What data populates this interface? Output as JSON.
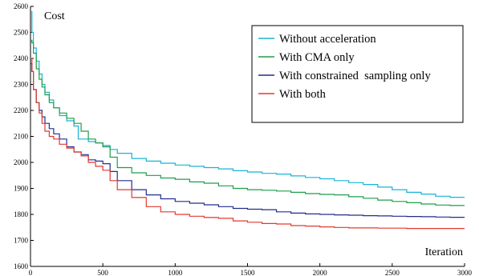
{
  "chart_data": {
    "type": "line",
    "xlabel": "Iteration",
    "ylabel": "Cost",
    "xlim": [
      0,
      3000
    ],
    "ylim": [
      1600,
      2600
    ],
    "xticks": [
      0,
      500,
      1000,
      1500,
      2000,
      2500,
      3000
    ],
    "yticks": [
      1600,
      1700,
      1800,
      1900,
      2000,
      2100,
      2200,
      2300,
      2400,
      2500,
      2600
    ],
    "grid": false,
    "legend": "top-right",
    "series": [
      {
        "name": "Without acceleration",
        "color": "#18b4d6",
        "x": [
          0,
          10,
          20,
          40,
          60,
          80,
          100,
          130,
          160,
          200,
          250,
          300,
          330,
          350,
          400,
          450,
          500,
          550,
          600,
          700,
          800,
          900,
          1000,
          1100,
          1200,
          1300,
          1400,
          1500,
          1600,
          1700,
          1800,
          1900,
          2000,
          2100,
          2200,
          2300,
          2400,
          2500,
          2600,
          2700,
          2800,
          2900,
          3000
        ],
        "y": [
          2580,
          2500,
          2440,
          2390,
          2340,
          2300,
          2270,
          2240,
          2210,
          2180,
          2160,
          2140,
          2090,
          2090,
          2080,
          2075,
          2065,
          2050,
          2035,
          2015,
          2005,
          1997,
          1990,
          1985,
          1980,
          1975,
          1968,
          1963,
          1958,
          1955,
          1948,
          1942,
          1937,
          1930,
          1922,
          1915,
          1905,
          1895,
          1885,
          1878,
          1870,
          1866,
          1866
        ]
      },
      {
        "name": "With CMA only",
        "color": "#1f9e4a",
        "x": [
          0,
          10,
          20,
          40,
          60,
          80,
          100,
          130,
          160,
          200,
          250,
          300,
          350,
          400,
          450,
          500,
          550,
          600,
          700,
          800,
          900,
          1000,
          1100,
          1200,
          1300,
          1400,
          1500,
          1600,
          1700,
          1800,
          1900,
          2000,
          2100,
          2200,
          2300,
          2400,
          2500,
          2600,
          2700,
          2800,
          2900,
          3000
        ],
        "y": [
          2470,
          2460,
          2420,
          2360,
          2320,
          2290,
          2260,
          2230,
          2210,
          2190,
          2170,
          2150,
          2120,
          2090,
          2075,
          2060,
          2020,
          1980,
          1960,
          1950,
          1940,
          1935,
          1925,
          1920,
          1910,
          1900,
          1895,
          1893,
          1890,
          1885,
          1880,
          1877,
          1875,
          1868,
          1862,
          1855,
          1850,
          1845,
          1840,
          1836,
          1834,
          1834
        ]
      },
      {
        "name": "With constrained  sampling only",
        "color": "#232d8c",
        "x": [
          0,
          10,
          20,
          40,
          60,
          80,
          100,
          130,
          160,
          200,
          250,
          300,
          350,
          400,
          450,
          500,
          550,
          600,
          700,
          800,
          900,
          1000,
          1100,
          1200,
          1300,
          1400,
          1500,
          1600,
          1700,
          1800,
          1900,
          2000,
          2100,
          2200,
          2300,
          2400,
          2500,
          2600,
          2700,
          2800,
          2900,
          3000
        ],
        "y": [
          2380,
          2350,
          2280,
          2230,
          2200,
          2175,
          2150,
          2130,
          2110,
          2090,
          2060,
          2040,
          2030,
          2010,
          2005,
          1995,
          1965,
          1930,
          1895,
          1875,
          1860,
          1850,
          1843,
          1837,
          1830,
          1823,
          1820,
          1818,
          1810,
          1805,
          1802,
          1800,
          1798,
          1797,
          1795,
          1794,
          1793,
          1792,
          1791,
          1790,
          1789,
          1789
        ]
      },
      {
        "name": "With both",
        "color": "#e03a2f",
        "x": [
          0,
          10,
          20,
          40,
          60,
          80,
          100,
          130,
          160,
          200,
          250,
          300,
          350,
          400,
          450,
          500,
          550,
          600,
          700,
          800,
          900,
          1000,
          1100,
          1200,
          1300,
          1400,
          1500,
          1600,
          1700,
          1800,
          1900,
          2000,
          2100,
          2200,
          2300,
          2400,
          2500,
          2600,
          2700,
          2800,
          2900,
          3000
        ],
        "y": [
          2400,
          2350,
          2280,
          2230,
          2190,
          2150,
          2120,
          2100,
          2090,
          2070,
          2055,
          2040,
          2025,
          2000,
          1985,
          1970,
          1930,
          1895,
          1865,
          1830,
          1810,
          1800,
          1793,
          1788,
          1785,
          1775,
          1770,
          1765,
          1763,
          1757,
          1755,
          1752,
          1750,
          1748,
          1748,
          1747,
          1747,
          1746,
          1746,
          1746,
          1746,
          1746
        ]
      }
    ]
  }
}
